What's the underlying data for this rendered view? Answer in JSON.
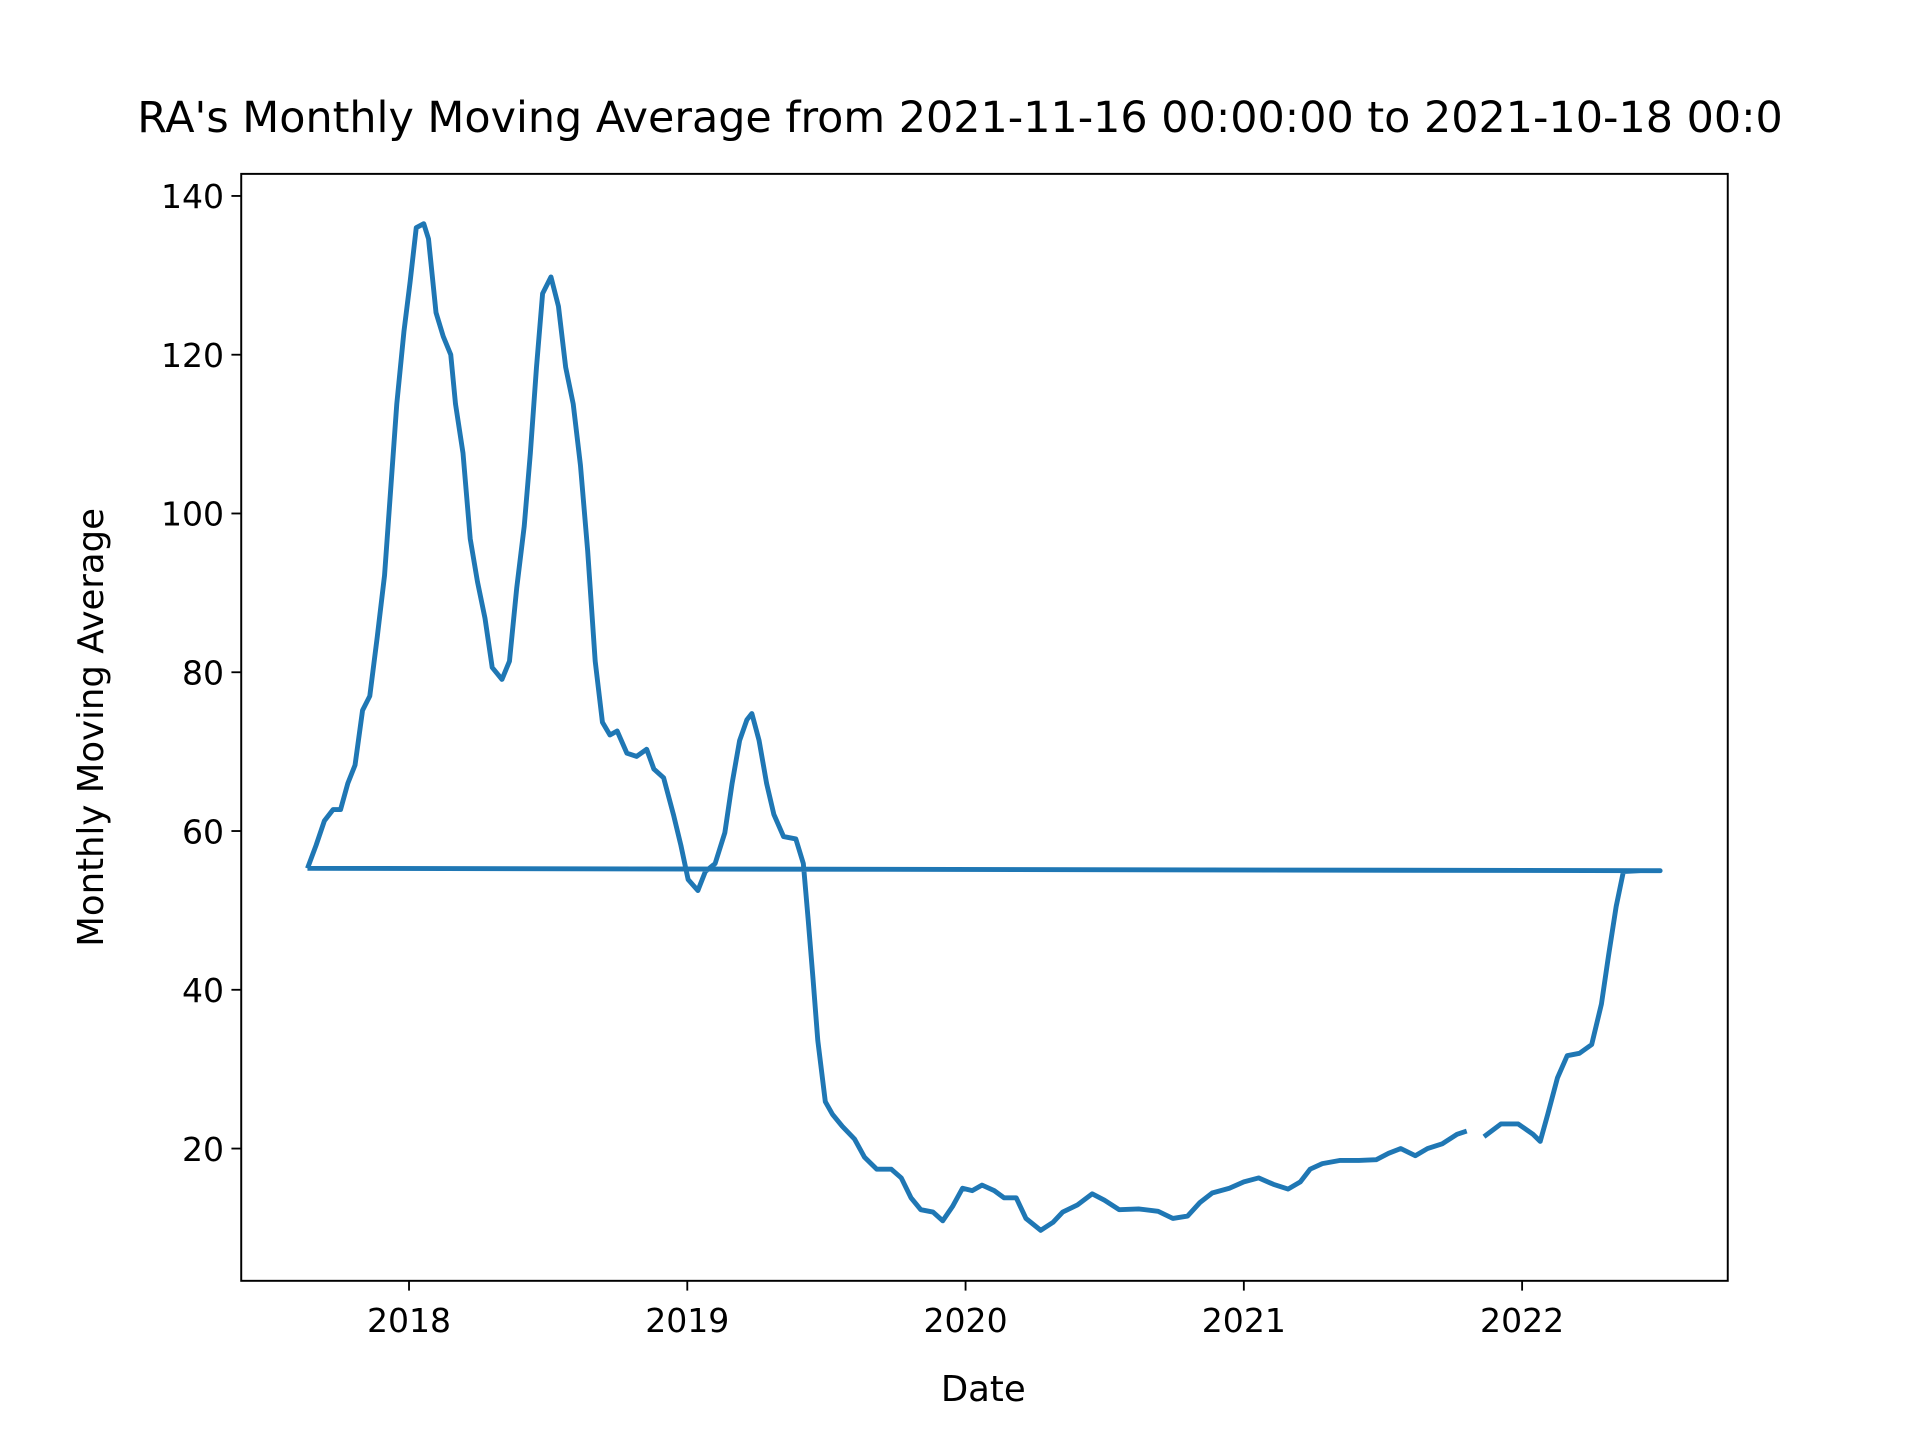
{
  "chart_data": {
    "type": "line",
    "title": "RA's Monthly Moving Average from 2021-11-16 00:00:00 to 2021-10-18 00:0",
    "xlabel": "Date",
    "ylabel": "Monthly Moving Average",
    "x": [
      2017.635,
      2017.666,
      2017.696,
      2017.727,
      2017.754,
      2017.78,
      2017.806,
      2017.833,
      2017.859,
      2017.886,
      2017.912,
      2017.934,
      2017.956,
      2017.982,
      2018.004,
      2018.026,
      2018.053,
      2018.07,
      2018.097,
      2018.123,
      2018.15,
      2018.167,
      2018.194,
      2018.22,
      2018.246,
      2018.273,
      2018.299,
      2018.334,
      2018.361,
      2018.387,
      2018.414,
      2018.436,
      2018.458,
      2018.48,
      2018.51,
      2018.537,
      2018.563,
      2018.59,
      2018.616,
      2018.642,
      2018.669,
      2018.695,
      2018.722,
      2018.748,
      2018.783,
      2018.818,
      2018.854,
      2018.88,
      2018.915,
      2018.95,
      2018.977,
      2019.003,
      2019.038,
      2019.065,
      2019.1,
      2019.135,
      2019.161,
      2019.188,
      2019.214,
      2019.232,
      2019.258,
      2019.285,
      2019.311,
      2019.346,
      2019.39,
      2019.417,
      2019.434,
      2019.452,
      2019.469,
      2019.496,
      2019.522,
      2019.557,
      2019.601,
      2019.637,
      2019.681,
      2019.733,
      2019.769,
      2019.804,
      2019.839,
      2019.883,
      2019.918,
      2019.953,
      2019.989,
      2020.024,
      2020.059,
      2020.103,
      2020.138,
      2020.182,
      2020.217,
      2020.27,
      2020.314,
      2020.349,
      2020.402,
      2020.455,
      2020.499,
      2020.552,
      2020.622,
      2020.692,
      2020.745,
      2020.798,
      2020.842,
      2020.886,
      2020.948,
      2021.0,
      2021.053,
      2021.106,
      2021.159,
      2021.203,
      2021.238,
      2021.282,
      2021.344,
      2021.414,
      2021.476,
      2021.52,
      2021.564,
      2021.616,
      2021.66,
      2021.713,
      2021.766,
      2021.801,
      2021.832,
      2021.863,
      2021.924,
      2021.986,
      2022.039,
      2022.065,
      2022.092,
      2022.127,
      2022.162,
      2022.206,
      2022.25,
      2022.285,
      2022.311,
      2022.338,
      2022.364,
      2022.426,
      2022.496,
      2017.635
    ],
    "series": [
      {
        "name": "Monthly Moving Average",
        "color": "#1f77b4",
        "values": [
          55.3,
          58.2,
          61.3,
          62.7,
          62.7,
          66,
          68.3,
          75.2,
          77,
          84.5,
          92.2,
          103,
          113.8,
          123,
          129.2,
          136,
          136.5,
          134.6,
          125.3,
          122.3,
          120,
          113.8,
          107.6,
          96.8,
          91.4,
          86.8,
          80.6,
          79.1,
          81.4,
          90.6,
          98.4,
          107.6,
          118.4,
          127.7,
          129.8,
          126.1,
          118.4,
          113.8,
          106.1,
          95.3,
          81.4,
          73.7,
          72.1,
          72.6,
          69.8,
          69.4,
          70.3,
          67.8,
          66.7,
          62.1,
          58.2,
          53.9,
          52.5,
          54.9,
          55.9,
          59.8,
          66,
          71.4,
          74,
          74.8,
          71.4,
          66,
          62.1,
          59.3,
          59,
          55.9,
          49,
          41.3,
          33.6,
          25.9,
          24.3,
          22.8,
          21.2,
          18.9,
          17.4,
          17.4,
          16.3,
          13.8,
          12.3,
          12,
          10.9,
          12.7,
          15,
          14.7,
          15.4,
          14.7,
          13.8,
          13.8,
          11.2,
          9.7,
          10.7,
          12,
          12.9,
          14.3,
          13.5,
          12.3,
          12.4,
          12.1,
          11.2,
          11.5,
          13.2,
          14.4,
          15,
          15.8,
          16.3,
          15.5,
          14.9,
          15.8,
          17.4,
          18.1,
          18.5,
          18.5,
          18.6,
          19.4,
          20,
          19.1,
          20,
          20.6,
          21.8,
          22.2,
          null,
          21.5,
          23.1,
          23.1,
          21.8,
          20.9,
          24.3,
          28.9,
          31.7,
          32,
          33.1,
          38.2,
          44.4,
          50.5,
          54.9,
          55,
          55,
          55.3
        ]
      }
    ],
    "xlim": [
      2017.397,
      2022.739
    ],
    "xticks": [
      2018,
      2019,
      2020,
      2021,
      2022
    ],
    "ylim": [
      3.34,
      142.78
    ],
    "yticks": [
      20,
      40,
      60,
      80,
      100,
      120,
      140
    ],
    "grid": false
  }
}
